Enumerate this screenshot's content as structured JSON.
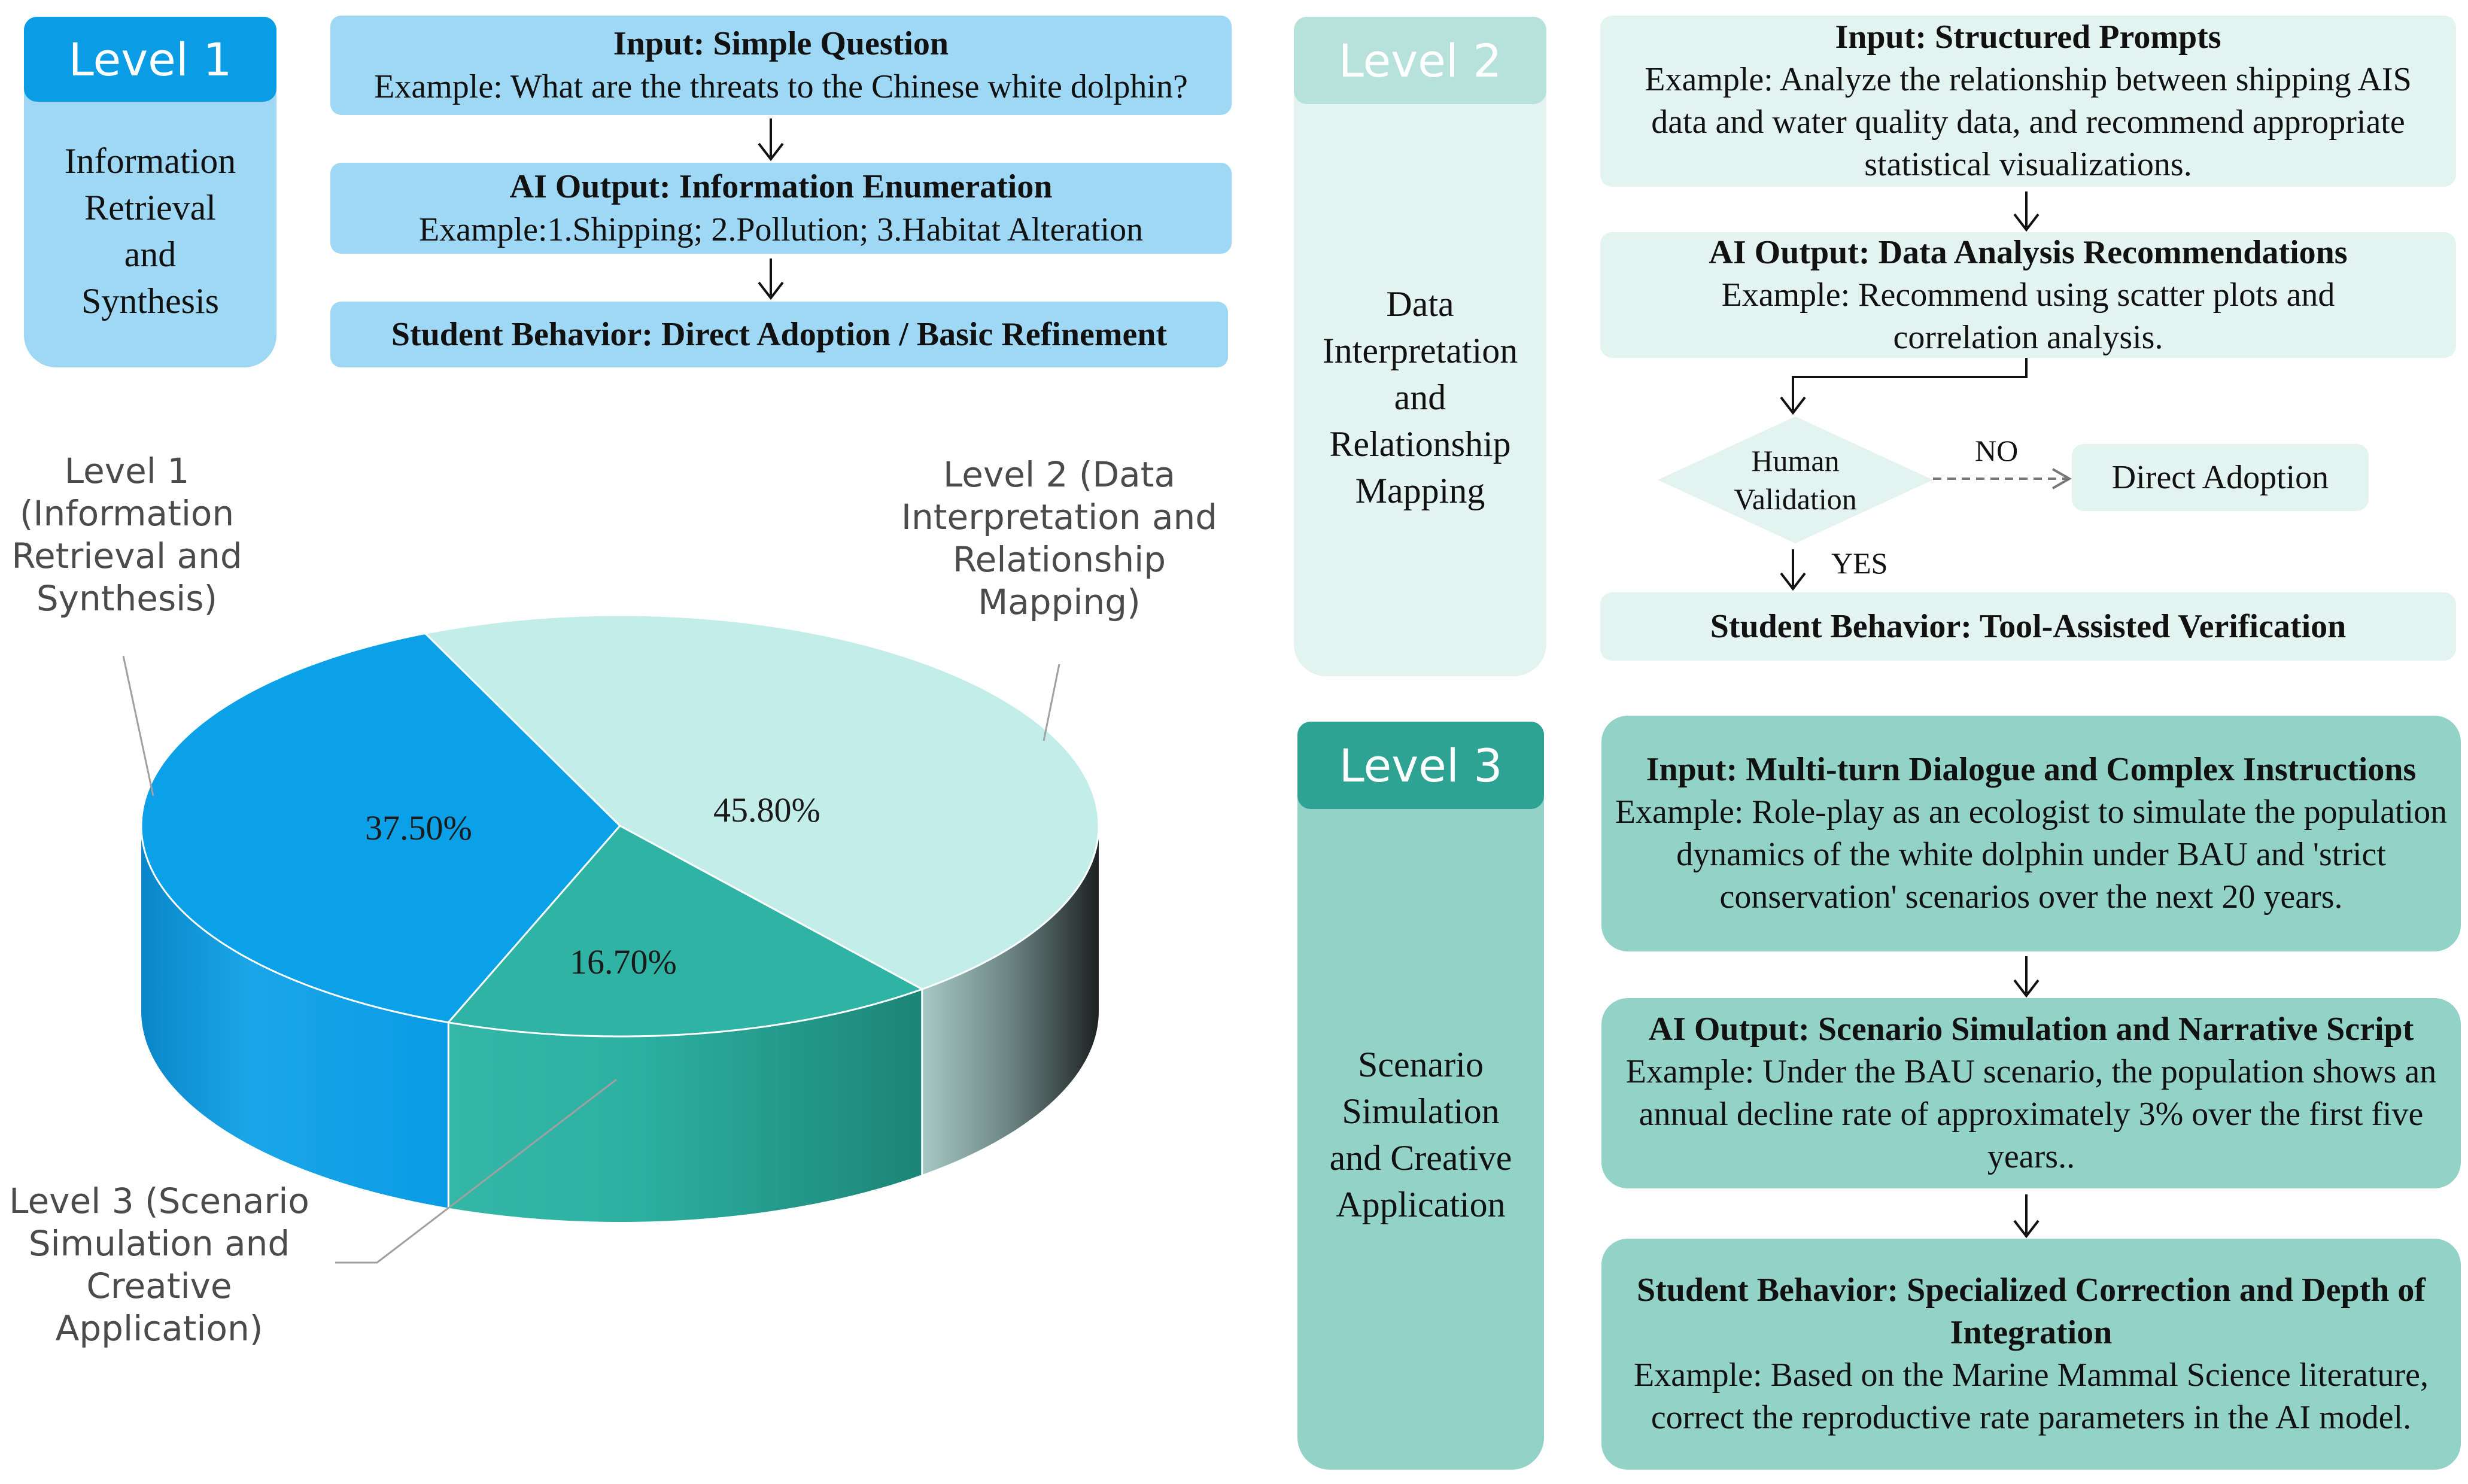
{
  "level1": {
    "header": "Level 1",
    "title": "Information Retrieval and Synthesis",
    "input_title": "Input: Simple Question",
    "input_example": "Example: What are the threats to the Chinese white dolphin?",
    "output_title": "AI Output: Information Enumeration",
    "output_example": "Example:1.Shipping; 2.Pollution; 3.Habitat Alteration",
    "behavior": "Student Behavior: Direct Adoption / Basic Refinement"
  },
  "level2": {
    "header": "Level 2",
    "title": "Data Interpretation and Relationship Mapping",
    "input_title": "Input: Structured Prompts",
    "input_example": "Example: Analyze the relationship between shipping AIS data and water quality data, and recommend appropriate statistical visualizations.",
    "output_title": "AI Output: Data Analysis Recommendations",
    "output_example": "Example: Recommend using scatter plots and correlation analysis.",
    "decision": "Human Validation",
    "no_label": "NO",
    "yes_label": "YES",
    "no_target": "Direct Adoption",
    "behavior": "Student Behavior: Tool-Assisted Verification"
  },
  "level3": {
    "header": "Level 3",
    "title": "Scenario Simulation and Creative Application",
    "input_title": "Input: Multi-turn Dialogue and Complex Instructions",
    "input_example": "Example: Role-play as an ecologist to simulate the population dynamics of the white dolphin under BAU and 'strict conservation' scenarios over the next 20 years.",
    "output_title": "AI Output: Scenario Simulation and Narrative Script",
    "output_example": "Example: Under the BAU scenario, the population shows an annual decline rate of approximately 3% over the first five years..",
    "behavior_title": "Student Behavior: Specialized Correction and Depth of Integration",
    "behavior_example": "Example: Based on the Marine Mammal Science literature, correct the reproductive rate parameters in the AI model."
  },
  "chart_data": {
    "type": "pie",
    "style": "3d",
    "legend_placement": "callouts",
    "slices": [
      {
        "label": "Level 1 (Information Retrieval and Synthesis)",
        "value": 37.5,
        "value_label": "37.50%",
        "color": "#0aa1e8"
      },
      {
        "label": "Level 2 (Data Interpretation and Relationship Mapping)",
        "value": 45.8,
        "value_label": "45.80%",
        "color": "#c3ede8"
      },
      {
        "label": "Level 3 (Scenario Simulation and Creative Application)",
        "value": 16.7,
        "value_label": "16.70%",
        "color": "#2fb3a4"
      }
    ],
    "callouts": {
      "level1": "Level 1 (Information Retrieval and Synthesis)",
      "level2": "Level 2 (Data Interpretation and Relationship Mapping)",
      "level3": "Level 3 (Scenario Simulation and Creative Application)"
    }
  },
  "colors": {
    "level1_header": "#0a9ce4",
    "level1_box": "#9ed8f4",
    "level2_header": "#b7e2dc",
    "level2_box": "#e2f3f0",
    "level3_header": "#2ea394",
    "level3_box": "#93d2c6"
  }
}
